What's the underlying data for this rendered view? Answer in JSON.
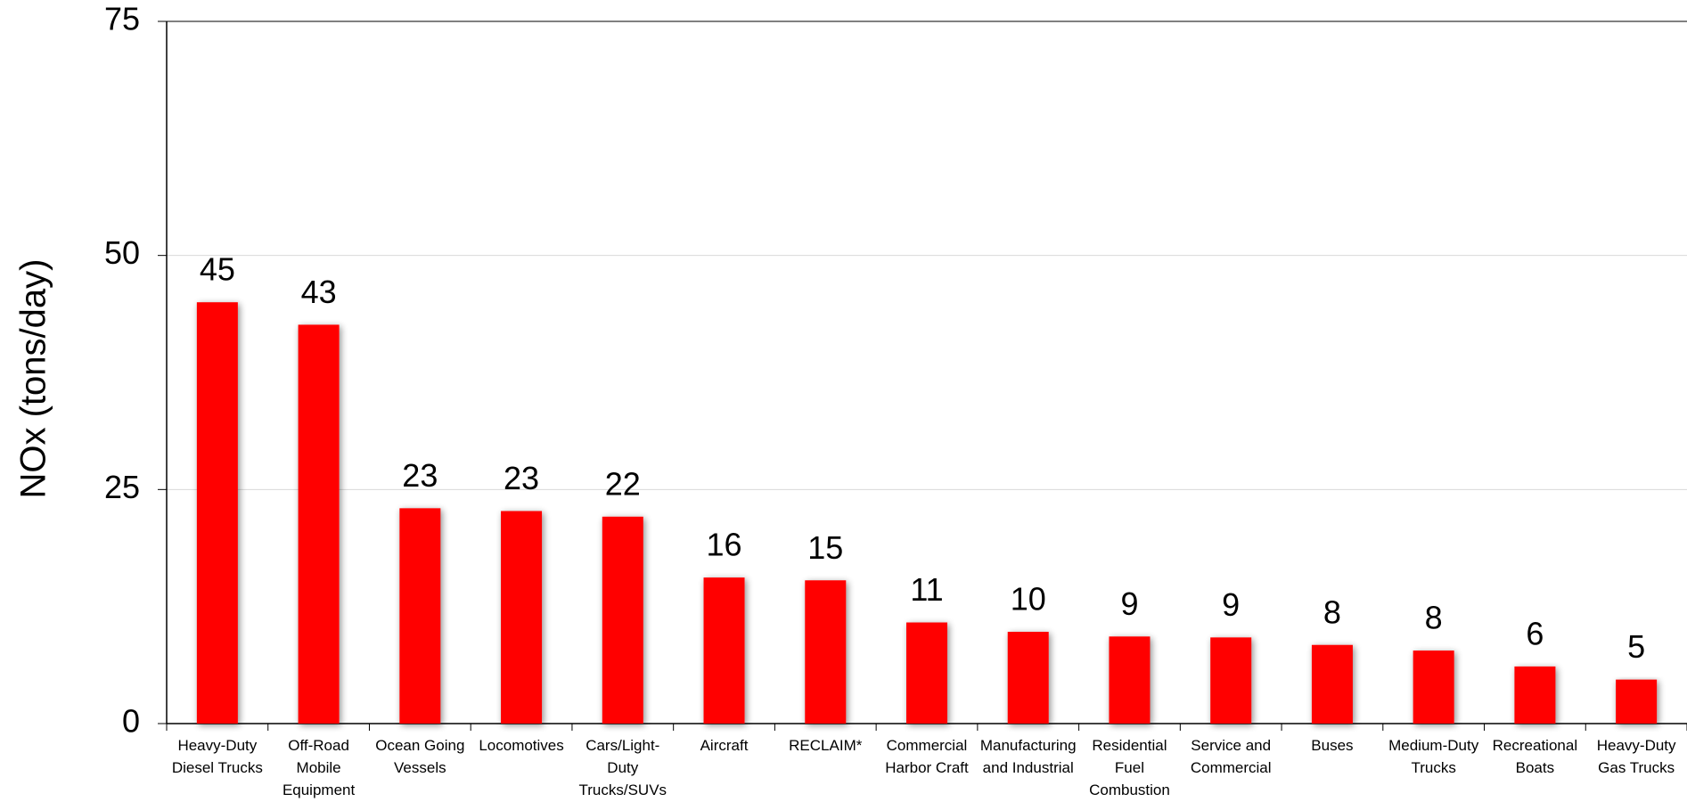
{
  "chart_data": {
    "type": "bar",
    "y_label": "NOx (tons/day)",
    "categories": [
      "Heavy-Duty Diesel Trucks",
      "Off-Road Mobile Equipment",
      "Ocean Going Vessels",
      "Locomotives",
      "Cars/Light-Duty Trucks/SUVs",
      "Aircraft",
      "RECLAIM*",
      "Commercial Harbor Craft",
      "Manufacturing and Industrial",
      "Residential Fuel Combustion",
      "Service and Commercial",
      "Buses",
      "Medium-Duty Trucks",
      "Recreational Boats",
      "Heavy-Duty Gas Trucks"
    ],
    "values": [
      45.0,
      42.6,
      23.0,
      22.7,
      22.1,
      15.6,
      15.3,
      10.8,
      9.8,
      9.3,
      9.2,
      8.4,
      7.8,
      6.1,
      4.7
    ],
    "value_labels": [
      "45",
      "43",
      "23",
      "23",
      "22",
      "16",
      "15",
      "11",
      "10",
      "9",
      "9",
      "8",
      "8",
      "6",
      "5"
    ],
    "color": "#ff0000",
    "ylim": [
      0,
      75
    ],
    "yticks": [
      0,
      25,
      50,
      75
    ],
    "grid": true
  }
}
